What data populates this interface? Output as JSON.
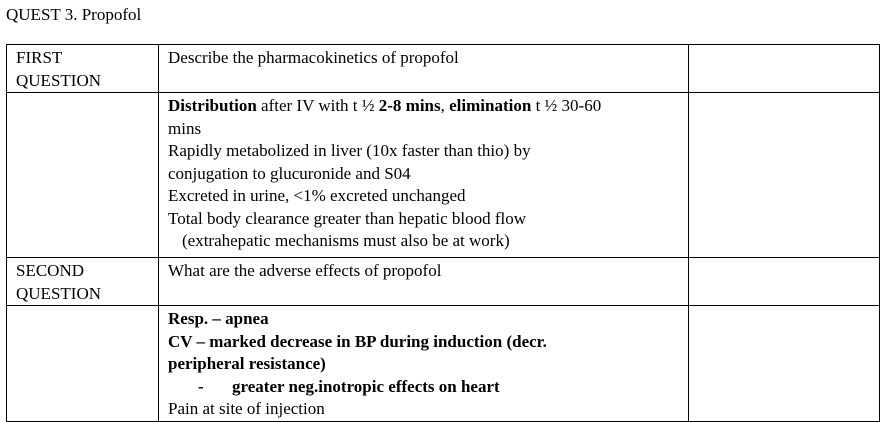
{
  "title": "QUEST 3.  Propofol",
  "rows": [
    {
      "label_line1": "FIRST",
      "label_line2": "QUESTION",
      "question": "Describe the  pharmacokinetics of propofol"
    },
    {
      "answer": {
        "line1": {
          "b1": "Distribution",
          "t1": " after IV with t ½ ",
          "b2": "2-8 mins",
          "t2": ", ",
          "b3": "elimination",
          "t3": " t ½ 30-60"
        },
        "line2": "mins",
        "line3": "Rapidly metabolized in liver (10x faster than thio) by",
        "line4": "conjugation to glucuronide and S04",
        "line5": "Excreted in urine, <1% excreted unchanged",
        "line6": "Total body clearance greater than hepatic blood flow",
        "line7": "(extrahepatic mechanisms must also be at work)"
      }
    },
    {
      "label_line1": "SECOND",
      "label_line2": "QUESTION",
      "question": "What are  the adverse effects of propofol"
    },
    {
      "answer": {
        "line1": "Resp. – apnea",
        "line2": "CV – marked decrease in BP during induction (decr.",
        "line3": "peripheral resistance)",
        "dash": "-",
        "line4": "greater neg.inotropic effects on heart",
        "line5": "Pain at site of injection"
      }
    }
  ]
}
